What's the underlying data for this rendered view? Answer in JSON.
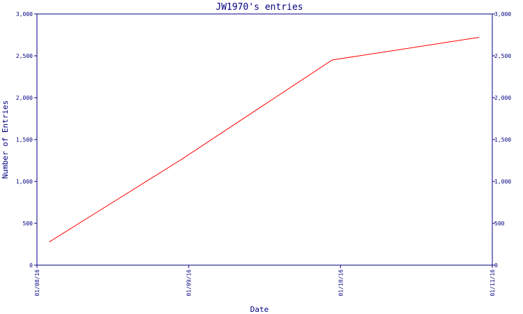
{
  "chart_data": {
    "type": "line",
    "title": "JW1970's entries",
    "xlabel": "Date",
    "ylabel": "Number of Entries",
    "ylim": [
      0,
      3000
    ],
    "y_ticks": [
      0,
      500,
      1000,
      1500,
      2000,
      2500,
      3000
    ],
    "y_tick_labels": [
      "0",
      "500",
      "1,000",
      "1,500",
      "2,000",
      "2,500",
      "3,000"
    ],
    "x_ticks": [
      "2016-01-08",
      "2016-01-09",
      "2016-01-10",
      "2016-01-11"
    ],
    "x_tick_labels": [
      "01/08/16",
      "01/09/16",
      "01/10/16",
      "01/11/16"
    ],
    "xlim": [
      "2016-01-08 00:00",
      "2016-01-11 00:00"
    ],
    "grid": false,
    "series": [
      {
        "color": "#ff0000",
        "points": [
          {
            "x": "2016-01-08 02:00",
            "y": 280
          },
          {
            "x": "2016-01-08 23:00",
            "y": 1270
          },
          {
            "x": "2016-01-09 22:40",
            "y": 2450
          },
          {
            "x": "2016-01-10 21:50",
            "y": 2720
          }
        ]
      }
    ]
  }
}
